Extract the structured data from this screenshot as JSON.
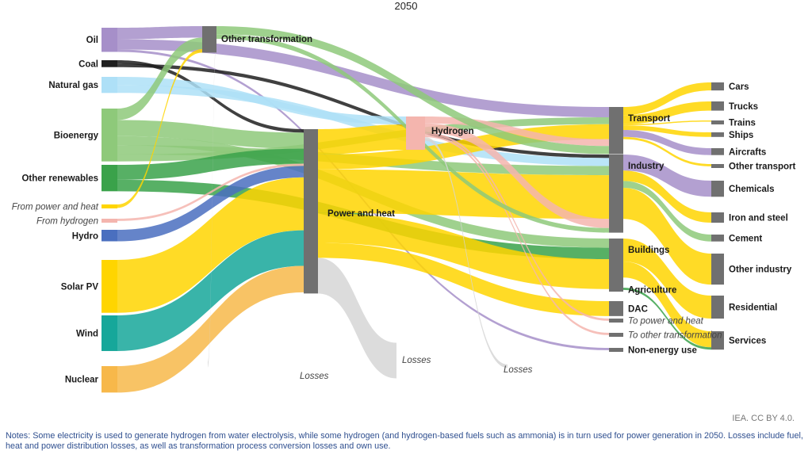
{
  "chart_data": {
    "type": "sankey",
    "title": "2050",
    "nodes": [
      {
        "id": "oil",
        "label": "Oil",
        "column": 0,
        "color": "#a68fc9"
      },
      {
        "id": "coal",
        "label": "Coal",
        "column": 0,
        "color": "#1f1f1f"
      },
      {
        "id": "gas",
        "label": "Natural gas",
        "column": 0,
        "color": "#aee0f7"
      },
      {
        "id": "bio",
        "label": "Bioenergy",
        "column": 0,
        "color": "#8ec97a"
      },
      {
        "id": "oren",
        "label": "Other renewables",
        "column": 0,
        "color": "#3aa24a"
      },
      {
        "id": "fph",
        "label": "From power and heat",
        "column": 0,
        "color": "#ffd500",
        "italic": true
      },
      {
        "id": "fh",
        "label": "From hydrogen",
        "column": 0,
        "color": "#f4b5ae",
        "italic": true
      },
      {
        "id": "hydro",
        "label": "Hydro",
        "column": 0,
        "color": "#4a6fbf"
      },
      {
        "id": "solar",
        "label": "Solar PV",
        "column": 0,
        "color": "#ffd500"
      },
      {
        "id": "wind",
        "label": "Wind",
        "column": 0,
        "color": "#16a79a"
      },
      {
        "id": "nuclear",
        "label": "Nuclear",
        "column": 0,
        "color": "#f7b84a"
      },
      {
        "id": "ot",
        "label": "Other transformation",
        "column": 1,
        "color": "#707070"
      },
      {
        "id": "ph",
        "label": "Power and heat",
        "column": 2,
        "color": "#707070"
      },
      {
        "id": "h2",
        "label": "Hydrogen",
        "column": 3,
        "color": "#f4b5ae"
      },
      {
        "id": "transport",
        "label": "Transport",
        "column": 4,
        "color": "#707070"
      },
      {
        "id": "industry",
        "label": "Industry",
        "column": 4,
        "color": "#707070"
      },
      {
        "id": "buildings",
        "label": "Buildings",
        "column": 4,
        "color": "#707070"
      },
      {
        "id": "agri",
        "label": "Agriculture",
        "column": 4,
        "color": "#707070"
      },
      {
        "id": "dac",
        "label": "DAC",
        "column": 4,
        "color": "#707070"
      },
      {
        "id": "tph",
        "label": "To power and heat",
        "column": 4,
        "color": "#707070",
        "italic": true
      },
      {
        "id": "tot",
        "label": "To other transformation",
        "column": 4,
        "color": "#707070",
        "italic": true
      },
      {
        "id": "neu",
        "label": "Non-energy use",
        "column": 4,
        "color": "#707070"
      },
      {
        "id": "cars",
        "label": "Cars",
        "column": 5,
        "color": "#707070"
      },
      {
        "id": "trucks",
        "label": "Trucks",
        "column": 5,
        "color": "#707070"
      },
      {
        "id": "trains",
        "label": "Trains",
        "column": 5,
        "color": "#707070"
      },
      {
        "id": "ships",
        "label": "Ships",
        "column": 5,
        "color": "#707070"
      },
      {
        "id": "aircrafts",
        "label": "Aircrafts",
        "column": 5,
        "color": "#707070"
      },
      {
        "id": "otrans",
        "label": "Other transport",
        "column": 5,
        "color": "#707070"
      },
      {
        "id": "chem",
        "label": "Chemicals",
        "column": 5,
        "color": "#707070"
      },
      {
        "id": "iron",
        "label": "Iron and steel",
        "column": 5,
        "color": "#707070"
      },
      {
        "id": "cement",
        "label": "Cement",
        "column": 5,
        "color": "#707070"
      },
      {
        "id": "oind",
        "label": "Other industry",
        "column": 5,
        "color": "#707070"
      },
      {
        "id": "resid",
        "label": "Residential",
        "column": 5,
        "color": "#707070"
      },
      {
        "id": "services",
        "label": "Services",
        "column": 5,
        "color": "#707070"
      }
    ],
    "losses_labels": [
      "Losses",
      "Losses",
      "Losses"
    ],
    "links": [
      {
        "source": "oil",
        "target": "ot",
        "value": 10,
        "color": "#a68fc9"
      },
      {
        "source": "oil",
        "target": "transport",
        "value": 9,
        "color": "#a68fc9"
      },
      {
        "source": "oil",
        "target": "neu",
        "value": 2,
        "color": "#a68fc9"
      },
      {
        "source": "coal",
        "target": "ph",
        "value": 3,
        "color": "#1f1f1f"
      },
      {
        "source": "coal",
        "target": "industry",
        "value": 3,
        "color": "#1f1f1f"
      },
      {
        "source": "gas",
        "target": "h2",
        "value": 7,
        "color": "#aee0f7"
      },
      {
        "source": "gas",
        "target": "industry",
        "value": 7,
        "color": "#aee0f7"
      },
      {
        "source": "bio",
        "target": "ot",
        "value": 10,
        "color": "#8ec97a"
      },
      {
        "source": "bio",
        "target": "ph",
        "value": 14,
        "color": "#8ec97a"
      },
      {
        "source": "bio",
        "target": "buildings",
        "value": 8,
        "color": "#8ec97a"
      },
      {
        "source": "bio",
        "target": "industry",
        "value": 8,
        "color": "#8ec97a"
      },
      {
        "source": "bio",
        "target": "transport",
        "value": 6,
        "color": "#8ec97a"
      },
      {
        "source": "oren",
        "target": "ph",
        "value": 13,
        "color": "#3aa24a"
      },
      {
        "source": "oren",
        "target": "buildings",
        "value": 10,
        "color": "#3aa24a"
      },
      {
        "source": "fph",
        "target": "ot",
        "value": 3,
        "color": "#ffd500"
      },
      {
        "source": "fh",
        "target": "ph",
        "value": 2,
        "color": "#f4b5ae"
      },
      {
        "source": "hydro",
        "target": "ph",
        "value": 10,
        "color": "#4a6fbf"
      },
      {
        "source": "solar",
        "target": "ph",
        "value": 46,
        "color": "#ffd500"
      },
      {
        "source": "wind",
        "target": "ph",
        "value": 31,
        "color": "#16a79a"
      },
      {
        "source": "nuclear",
        "target": "ph",
        "value": 23,
        "color": "#f7b84a"
      },
      {
        "source": "ph",
        "target": "h2",
        "value": 22,
        "color": "#ffd500"
      },
      {
        "source": "ph",
        "target": "transport",
        "value": 13,
        "color": "#ffd500"
      },
      {
        "source": "ph",
        "target": "industry",
        "value": 38,
        "color": "#ffd500"
      },
      {
        "source": "ph",
        "target": "buildings",
        "value": 26,
        "color": "#ffd500"
      },
      {
        "source": "ph",
        "target": "dac",
        "value": 13,
        "color": "#ffd500"
      },
      {
        "source": "ph",
        "target": "losses",
        "value": 31,
        "color": "#d6d6d6"
      },
      {
        "source": "h2",
        "target": "transport",
        "value": 6,
        "color": "#f4b5ae"
      },
      {
        "source": "h2",
        "target": "industry",
        "value": 8,
        "color": "#f4b5ae"
      },
      {
        "source": "h2",
        "target": "tph",
        "value": 2,
        "color": "#f4b5ae"
      },
      {
        "source": "h2",
        "target": "tot",
        "value": 2,
        "color": "#f4b5ae"
      },
      {
        "source": "h2",
        "target": "losses",
        "value": 3,
        "color": "#d6d6d6"
      },
      {
        "source": "ot",
        "target": "transport",
        "value": 7,
        "color": "#8ec97a"
      },
      {
        "source": "ot",
        "target": "industry",
        "value": 4,
        "color": "#8ec97a"
      },
      {
        "source": "ot",
        "target": "losses",
        "value": 5,
        "color": "#d6d6d6"
      },
      {
        "source": "transport",
        "target": "cars",
        "value": 7,
        "color": "#ffd500"
      },
      {
        "source": "transport",
        "target": "trucks",
        "value": 8,
        "color": "#ffd500"
      },
      {
        "source": "transport",
        "target": "trains",
        "value": 1,
        "color": "#ffd500"
      },
      {
        "source": "transport",
        "target": "ships",
        "value": 4,
        "color": "#ffd500"
      },
      {
        "source": "transport",
        "target": "aircrafts",
        "value": 6,
        "color": "#a68fc9"
      },
      {
        "source": "transport",
        "target": "otrans",
        "value": 2,
        "color": "#ffd500"
      },
      {
        "source": "industry",
        "target": "chem",
        "value": 14,
        "color": "#a68fc9"
      },
      {
        "source": "industry",
        "target": "iron",
        "value": 9,
        "color": "#ffd500"
      },
      {
        "source": "industry",
        "target": "cement",
        "value": 6,
        "color": "#8ec97a"
      },
      {
        "source": "industry",
        "target": "oind",
        "value": 27,
        "color": "#ffd500"
      },
      {
        "source": "buildings",
        "target": "resid",
        "value": 20,
        "color": "#ffd500"
      },
      {
        "source": "buildings",
        "target": "services",
        "value": 14,
        "color": "#ffd500"
      },
      {
        "source": "agri",
        "target": "services",
        "value": 2,
        "color": "#3aa24a"
      }
    ]
  },
  "attribution": "IEA. CC BY 4.0.",
  "notes": "Notes: Some electricity is used to generate hydrogen from water electrolysis, while some hydrogen (and hydrogen-based fuels such as ammonia) is in turn used for power generation in 2050. Losses include fuel, heat and power distribution losses, as well as transformation process conversion losses and own use."
}
